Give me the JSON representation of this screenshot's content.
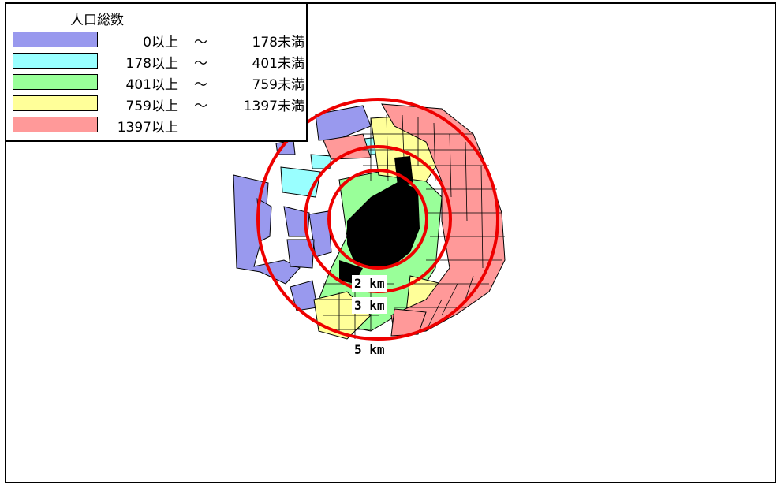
{
  "legend": {
    "title": "人口総数",
    "rows": [
      {
        "lo": "0以上",
        "sep": "〜",
        "hi": "178未満",
        "color": "#9999ee"
      },
      {
        "lo": "178以上",
        "sep": "〜",
        "hi": "401未満",
        "color": "#99ffff"
      },
      {
        "lo": "401以上",
        "sep": "〜",
        "hi": "759未満",
        "color": "#99ff99"
      },
      {
        "lo": "759以上",
        "sep": "〜",
        "hi": "1397未満",
        "color": "#ffff99"
      },
      {
        "lo": "1397以上",
        "sep": "",
        "hi": "",
        "color": "#ff9999"
      }
    ]
  },
  "rings": [
    {
      "label": "2 km",
      "radius_km": 2
    },
    {
      "label": "3 km",
      "radius_km": 3
    },
    {
      "label": "5 km",
      "radius_km": 5
    }
  ],
  "colors": {
    "ring": "#ee0000",
    "boundary": "#000000"
  }
}
